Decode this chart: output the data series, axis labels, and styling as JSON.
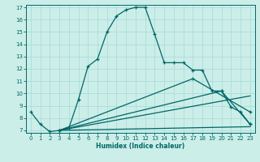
{
  "xlabel": "Humidex (Indice chaleur)",
  "bg_color": "#cceee8",
  "grid_color": "#aadddd",
  "line_color": "#006666",
  "xlim": [
    -0.5,
    23.5
  ],
  "ylim": [
    6.8,
    17.2
  ],
  "yticks": [
    7,
    8,
    9,
    10,
    11,
    12,
    13,
    14,
    15,
    16,
    17
  ],
  "xticks": [
    0,
    1,
    2,
    3,
    4,
    5,
    6,
    7,
    8,
    9,
    10,
    11,
    12,
    13,
    14,
    15,
    16,
    17,
    18,
    19,
    20,
    21,
    22,
    23
  ],
  "series1_x": [
    0,
    1,
    2,
    3,
    4,
    5,
    6,
    7,
    8,
    9,
    10,
    11,
    12,
    13,
    14,
    15,
    16,
    17,
    18,
    19,
    20,
    21,
    22,
    23
  ],
  "series1_y": [
    8.5,
    7.5,
    6.9,
    7.0,
    7.2,
    9.5,
    12.2,
    12.8,
    15.0,
    16.3,
    16.8,
    17.0,
    17.0,
    14.8,
    12.5,
    12.5,
    12.5,
    11.9,
    11.9,
    10.2,
    10.2,
    8.9,
    8.5,
    7.5
  ],
  "series2_x": [
    3,
    17,
    23
  ],
  "series2_y": [
    7.0,
    11.2,
    8.5
  ],
  "series3_x": [
    3,
    20,
    23
  ],
  "series3_y": [
    7.0,
    10.2,
    7.5
  ],
  "series4_x": [
    3,
    23
  ],
  "series4_y": [
    7.0,
    7.3
  ],
  "series5_x": [
    3,
    23
  ],
  "series5_y": [
    7.0,
    9.8
  ]
}
